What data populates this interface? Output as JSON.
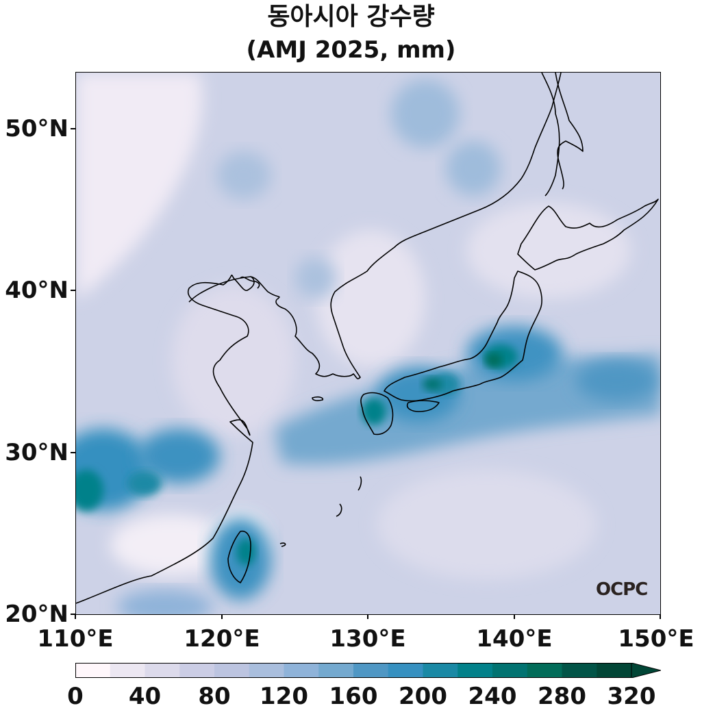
{
  "title": {
    "line1": "동아시아 강수량",
    "line2": "(AMJ 2025, mm)"
  },
  "map": {
    "lon_range": [
      110,
      150
    ],
    "lat_range": [
      20,
      53.5
    ],
    "lat_ticks": [
      {
        "value": 50,
        "label": "50°N"
      },
      {
        "value": 40,
        "label": "40°N"
      },
      {
        "value": 30,
        "label": "30°N"
      },
      {
        "value": 20,
        "label": "20°N"
      }
    ],
    "lon_ticks": [
      {
        "value": 110,
        "label": "110°E"
      },
      {
        "value": 120,
        "label": "120°E"
      },
      {
        "value": 130,
        "label": "130°E"
      },
      {
        "value": 140,
        "label": "140°E"
      },
      {
        "value": 150,
        "label": "150°E"
      }
    ],
    "logo": "OCPC"
  },
  "colorbar": {
    "min": 0,
    "max": 320,
    "step": 20,
    "extend": "max",
    "ticks": [
      "0",
      "40",
      "80",
      "120",
      "160",
      "200",
      "240",
      "280",
      "320"
    ],
    "colors": [
      "#fff7fb",
      "#ece7f2",
      "#dcdaeb",
      "#cbcde5",
      "#bcc4e0",
      "#a9bedd",
      "#8fb3d9",
      "#74a9cf",
      "#4f97c4",
      "#3690c0",
      "#1a89a5",
      "#02818a",
      "#017371",
      "#016c59",
      "#015447",
      "#014636"
    ],
    "extend_color": "#014636"
  }
}
